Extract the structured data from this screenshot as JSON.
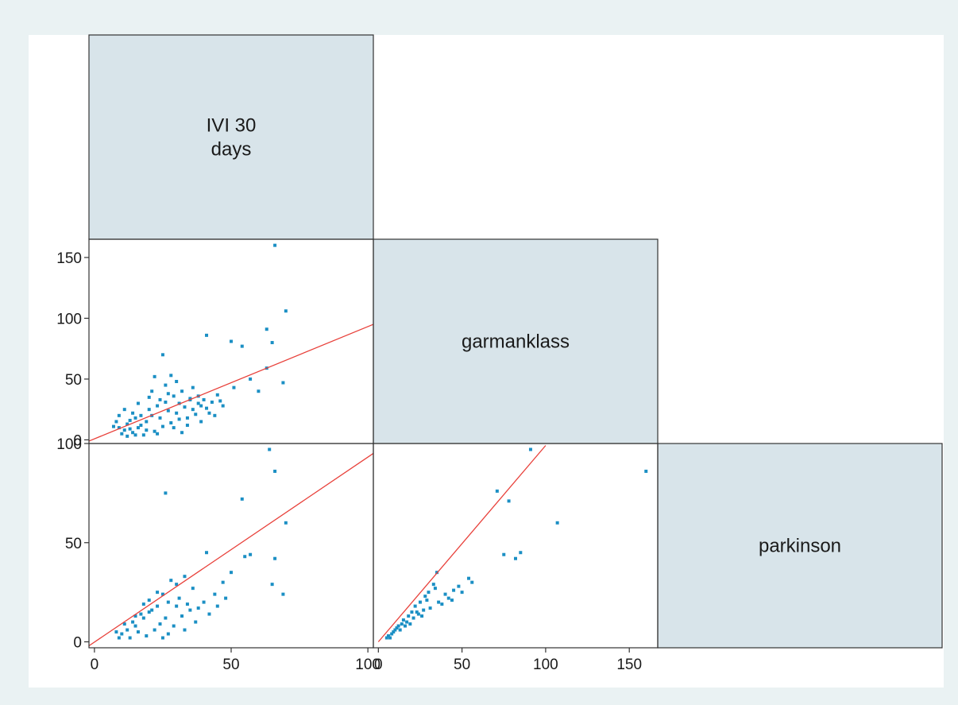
{
  "chart_data": {
    "type": "scatter",
    "style": {
      "outer_background": "#eaf2f3",
      "plot_background": "#ffffff",
      "diagonal_fill": "#d8e4ea",
      "marker_color": "#1b8fc4",
      "fit_line_color": "#e8403a",
      "frame_color": "#333333"
    },
    "variables": [
      {
        "label_lines": [
          "IVI 30",
          "days"
        ]
      },
      {
        "label_lines": [
          "garmanklass"
        ]
      },
      {
        "label_lines": [
          "parkinson"
        ]
      }
    ],
    "axes": {
      "col0": {
        "range": [
          -2,
          102
        ],
        "ticks": [
          "0",
          "50",
          "100"
        ],
        "tick_values": [
          0,
          50,
          100
        ]
      },
      "col1": {
        "range": [
          -3,
          167
        ],
        "ticks": [
          "0",
          "50",
          "100",
          "150"
        ],
        "tick_values": [
          0,
          50,
          100,
          150
        ]
      },
      "row1": {
        "range": [
          -3,
          165
        ],
        "ticks": [
          "0",
          "50",
          "100",
          "150"
        ],
        "tick_values": [
          0,
          50,
          100,
          150
        ]
      },
      "row2": {
        "range": [
          -3,
          100
        ],
        "ticks": [
          "0",
          "50",
          "100"
        ],
        "tick_values": [
          0,
          50,
          100
        ]
      }
    },
    "panels": [
      {
        "name": "garmanklass-vs-ivi30",
        "x_var": 0,
        "y_var": 1,
        "fit_line": [
          [
            -2,
            -1
          ],
          [
            102,
            95
          ]
        ],
        "points": [
          [
            66,
            160
          ],
          [
            70,
            106
          ],
          [
            41,
            86
          ],
          [
            63,
            91
          ],
          [
            50,
            81
          ],
          [
            54,
            77
          ],
          [
            65,
            80
          ],
          [
            63,
            59
          ],
          [
            60,
            40
          ],
          [
            57,
            50
          ],
          [
            51,
            43
          ],
          [
            45,
            37
          ],
          [
            69,
            47
          ],
          [
            25,
            70
          ],
          [
            38,
            36
          ],
          [
            35,
            33
          ],
          [
            31,
            30
          ],
          [
            28,
            53
          ],
          [
            22,
            52
          ],
          [
            12,
            13
          ],
          [
            15,
            18
          ],
          [
            20,
            25
          ],
          [
            9,
            10
          ],
          [
            11,
            8
          ],
          [
            14,
            6
          ],
          [
            17,
            12
          ],
          [
            23,
            28
          ],
          [
            26,
            31
          ],
          [
            30,
            22
          ],
          [
            33,
            27
          ],
          [
            38,
            30
          ],
          [
            41,
            26
          ],
          [
            24,
            18
          ],
          [
            19,
            15
          ],
          [
            16,
            10
          ],
          [
            13,
            9
          ],
          [
            21,
            20
          ],
          [
            27,
            24
          ],
          [
            29,
            36
          ],
          [
            32,
            40
          ],
          [
            35,
            34
          ],
          [
            36,
            43
          ],
          [
            42,
            22
          ],
          [
            44,
            20
          ],
          [
            39,
            15
          ],
          [
            12,
            3
          ],
          [
            10,
            5
          ],
          [
            18,
            4
          ],
          [
            22,
            7
          ],
          [
            25,
            11
          ],
          [
            28,
            14
          ],
          [
            34,
            18
          ],
          [
            37,
            21
          ],
          [
            40,
            33
          ],
          [
            43,
            31
          ],
          [
            47,
            28
          ],
          [
            30,
            48
          ],
          [
            26,
            45
          ],
          [
            20,
            35
          ],
          [
            14,
            22
          ],
          [
            8,
            15
          ],
          [
            7,
            11
          ],
          [
            9,
            20
          ],
          [
            11,
            25
          ],
          [
            16,
            30
          ],
          [
            21,
            40
          ],
          [
            24,
            33
          ],
          [
            27,
            38
          ],
          [
            31,
            17
          ],
          [
            34,
            12
          ],
          [
            15,
            4
          ],
          [
            19,
            8
          ],
          [
            23,
            5
          ],
          [
            13,
            16
          ],
          [
            17,
            20
          ],
          [
            29,
            10
          ],
          [
            32,
            6
          ],
          [
            36,
            25
          ],
          [
            39,
            28
          ],
          [
            46,
            32
          ]
        ]
      },
      {
        "name": "parkinson-vs-ivi30",
        "x_var": 0,
        "y_var": 2,
        "fit_line": [
          [
            -2,
            -2
          ],
          [
            102,
            95
          ]
        ],
        "points": [
          [
            64,
            97
          ],
          [
            66,
            86
          ],
          [
            26,
            75
          ],
          [
            54,
            72
          ],
          [
            70,
            60
          ],
          [
            66,
            42
          ],
          [
            65,
            29
          ],
          [
            57,
            44
          ],
          [
            55,
            43
          ],
          [
            69,
            24
          ],
          [
            41,
            45
          ],
          [
            50,
            35
          ],
          [
            47,
            30
          ],
          [
            36,
            27
          ],
          [
            33,
            33
          ],
          [
            30,
            29
          ],
          [
            28,
            31
          ],
          [
            27,
            20
          ],
          [
            25,
            24
          ],
          [
            23,
            18
          ],
          [
            20,
            15
          ],
          [
            18,
            12
          ],
          [
            15,
            8
          ],
          [
            12,
            6
          ],
          [
            10,
            4
          ],
          [
            9,
            2
          ],
          [
            14,
            10
          ],
          [
            17,
            14
          ],
          [
            21,
            16
          ],
          [
            24,
            9
          ],
          [
            26,
            12
          ],
          [
            29,
            8
          ],
          [
            32,
            13
          ],
          [
            35,
            16
          ],
          [
            38,
            17
          ],
          [
            40,
            20
          ],
          [
            42,
            14
          ],
          [
            45,
            18
          ],
          [
            48,
            22
          ],
          [
            16,
            5
          ],
          [
            19,
            3
          ],
          [
            22,
            6
          ],
          [
            13,
            2
          ],
          [
            11,
            9
          ],
          [
            8,
            5
          ],
          [
            20,
            21
          ],
          [
            23,
            25
          ],
          [
            31,
            22
          ],
          [
            34,
            19
          ],
          [
            37,
            10
          ],
          [
            44,
            24
          ],
          [
            18,
            19
          ],
          [
            15,
            13
          ],
          [
            27,
            4
          ],
          [
            30,
            18
          ],
          [
            25,
            2
          ],
          [
            33,
            6
          ]
        ]
      },
      {
        "name": "parkinson-vs-garmanklass",
        "x_var": 1,
        "y_var": 2,
        "fit_line": [
          [
            0,
            0
          ],
          [
            100,
            99
          ]
        ],
        "points": [
          [
            91,
            97
          ],
          [
            160,
            86
          ],
          [
            71,
            76
          ],
          [
            78,
            71
          ],
          [
            107,
            60
          ],
          [
            75,
            44
          ],
          [
            85,
            45
          ],
          [
            82,
            42
          ],
          [
            54,
            32
          ],
          [
            56,
            30
          ],
          [
            48,
            28
          ],
          [
            45,
            26
          ],
          [
            40,
            24
          ],
          [
            35,
            35
          ],
          [
            33,
            29
          ],
          [
            30,
            25
          ],
          [
            28,
            23
          ],
          [
            25,
            20
          ],
          [
            22,
            18
          ],
          [
            20,
            15
          ],
          [
            18,
            13
          ],
          [
            15,
            11
          ],
          [
            12,
            8
          ],
          [
            10,
            6
          ],
          [
            8,
            4
          ],
          [
            6,
            3
          ],
          [
            5,
            2
          ],
          [
            14,
            9
          ],
          [
            17,
            10
          ],
          [
            24,
            14
          ],
          [
            27,
            16
          ],
          [
            31,
            17
          ],
          [
            36,
            20
          ],
          [
            42,
            22
          ],
          [
            38,
            19
          ],
          [
            26,
            13
          ],
          [
            19,
            9
          ],
          [
            13,
            6
          ],
          [
            9,
            5
          ],
          [
            7,
            2
          ],
          [
            21,
            12
          ],
          [
            29,
            21
          ],
          [
            34,
            27
          ],
          [
            23,
            15
          ],
          [
            16,
            8
          ],
          [
            11,
            7
          ],
          [
            44,
            21
          ],
          [
            50,
            25
          ]
        ]
      }
    ]
  }
}
